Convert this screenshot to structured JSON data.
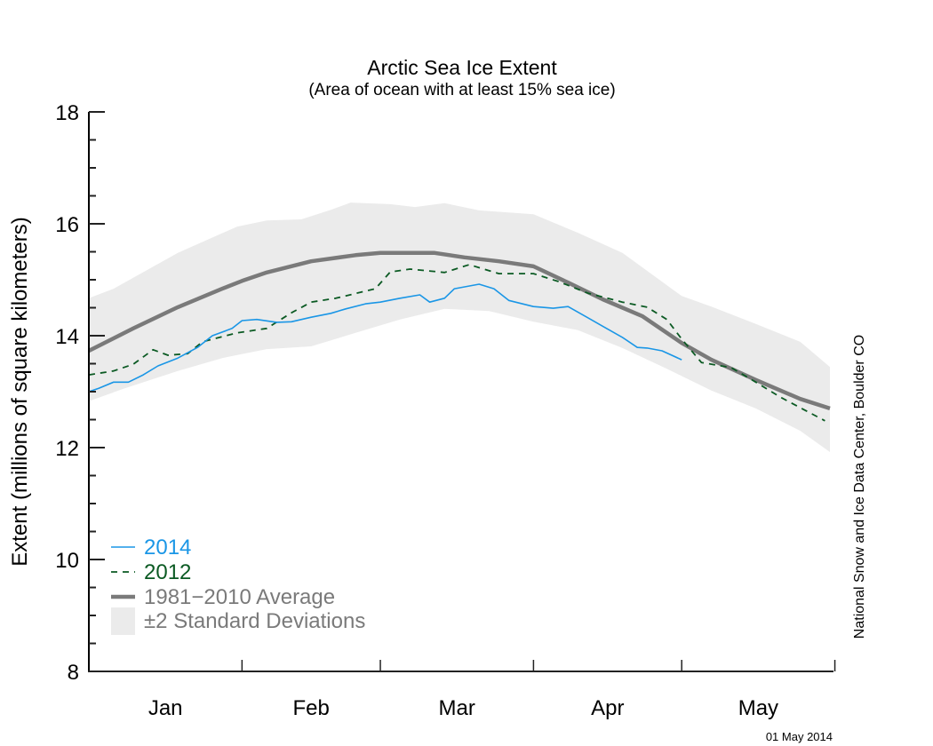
{
  "chart_data": {
    "type": "line",
    "title": "Arctic Sea Ice Extent",
    "subtitle": "(Area of ocean with at least 15% sea ice)",
    "xlabel": "",
    "ylabel": "Extent (millions of square kilometers)",
    "ylim": [
      8,
      18
    ],
    "yticks": [
      "8",
      "10",
      "12",
      "14",
      "16",
      "18"
    ],
    "ytick_values": [
      8,
      10,
      12,
      14,
      16,
      18
    ],
    "yminor_step": 0.5,
    "x_unit": "day of year (0 = Jan 1)",
    "xlim": [
      0,
      151
    ],
    "month_boundaries": [
      0,
      31,
      59,
      90,
      120,
      151
    ],
    "month_labels": [
      "Jan",
      "Feb",
      "Mar",
      "Apr",
      "May"
    ],
    "grid": false,
    "legend_position": "bottom-left",
    "credit": "National Snow and Ice Data Center, Boulder CO",
    "date_stamp": "01 May 2014",
    "band": {
      "name": "±2 Standard Deviations",
      "color": "#ebebeb",
      "upper": {
        "x": [
          0,
          5,
          18,
          30,
          36,
          43,
          49,
          53,
          61,
          66,
          72,
          79,
          90,
          99,
          108,
          120,
          126,
          135,
          144,
          150
        ],
        "y": [
          14.67,
          14.84,
          15.48,
          15.95,
          16.06,
          16.08,
          16.25,
          16.38,
          16.35,
          16.3,
          16.37,
          16.24,
          16.17,
          15.84,
          15.48,
          14.71,
          14.52,
          14.21,
          13.89,
          13.44
        ]
      },
      "lower": {
        "x": [
          0,
          7,
          18,
          27,
          36,
          45,
          54,
          63,
          72,
          81,
          90,
          99,
          108,
          117,
          126,
          135,
          144,
          150
        ],
        "y": [
          12.83,
          13.05,
          13.37,
          13.6,
          13.76,
          13.81,
          14.05,
          14.29,
          14.48,
          14.44,
          14.25,
          14.1,
          13.78,
          13.41,
          13.02,
          12.7,
          12.3,
          11.92
        ]
      }
    },
    "series": [
      {
        "name": "1981−2010 Average",
        "color": "#7a7a7a",
        "style": "solid-thick",
        "x": [
          0,
          9,
          18,
          27,
          31,
          36,
          45,
          54,
          59,
          65,
          70,
          76,
          83,
          90,
          97,
          104,
          112,
          120,
          126,
          135,
          144,
          150
        ],
        "y": [
          13.73,
          14.13,
          14.51,
          14.84,
          14.98,
          15.13,
          15.33,
          15.44,
          15.48,
          15.48,
          15.48,
          15.4,
          15.33,
          15.24,
          14.95,
          14.65,
          14.35,
          13.87,
          13.57,
          13.21,
          12.87,
          12.7
        ]
      },
      {
        "name": "2012",
        "color": "#0b5a23",
        "style": "dashed",
        "x": [
          0,
          5,
          9,
          13,
          16,
          20,
          23,
          30,
          36,
          41,
          45,
          50,
          58,
          61,
          65,
          72,
          77,
          83,
          90,
          95,
          101,
          108,
          113,
          117,
          120,
          124,
          130,
          135,
          140,
          149
        ],
        "y": [
          13.3,
          13.37,
          13.49,
          13.75,
          13.65,
          13.68,
          13.89,
          14.05,
          14.13,
          14.41,
          14.6,
          14.67,
          14.84,
          15.14,
          15.19,
          15.13,
          15.27,
          15.11,
          15.11,
          14.97,
          14.76,
          14.6,
          14.51,
          14.29,
          13.94,
          13.52,
          13.43,
          13.17,
          12.9,
          12.48
        ]
      },
      {
        "name": "2014",
        "color": "#1a96e6",
        "style": "solid-thin",
        "x": [
          0,
          2,
          5,
          8,
          11,
          14,
          18,
          22,
          25,
          29,
          31,
          34,
          38,
          41,
          45,
          49,
          52,
          56,
          59,
          63,
          67,
          69,
          72,
          74,
          79,
          82,
          85,
          90,
          94,
          97,
          101,
          104,
          108,
          111,
          113,
          116,
          120
        ],
        "y": [
          13.0,
          13.06,
          13.17,
          13.17,
          13.3,
          13.46,
          13.6,
          13.79,
          14.0,
          14.13,
          14.27,
          14.29,
          14.24,
          14.25,
          14.33,
          14.4,
          14.48,
          14.57,
          14.6,
          14.67,
          14.73,
          14.6,
          14.67,
          14.84,
          14.92,
          14.84,
          14.63,
          14.52,
          14.49,
          14.52,
          14.32,
          14.17,
          13.97,
          13.79,
          13.78,
          13.73,
          13.57
        ]
      }
    ],
    "legend": [
      {
        "label": "2014",
        "color": "#1a96e6",
        "swatch": "thin-line"
      },
      {
        "label": "2012",
        "color": "#0b5a23",
        "swatch": "dashed-line"
      },
      {
        "label": "1981−2010 Average",
        "color": "#7a7a7a",
        "swatch": "thick-line"
      },
      {
        "label": "±2 Standard Deviations",
        "color": "#7a7a7a",
        "swatch": "box",
        "swatch_color": "#ebebeb"
      }
    ]
  }
}
